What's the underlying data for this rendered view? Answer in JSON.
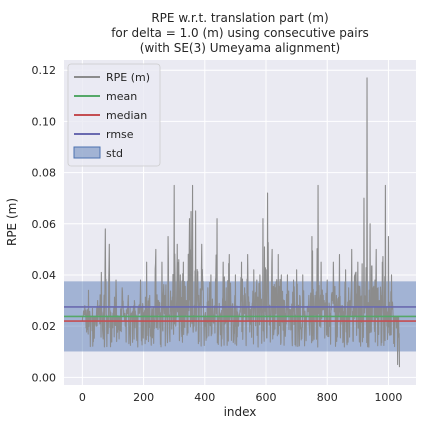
{
  "chart_data": {
    "type": "line",
    "title_lines": [
      "RPE w.r.t. translation part (m)",
      "for delta = 1.0 (m) using consecutive pairs",
      "(with SE(3) Umeyama alignment)"
    ],
    "xlabel": "index",
    "ylabel": "RPE (m)",
    "xlim": [
      -60,
      1090
    ],
    "ylim": [
      -0.003,
      0.124
    ],
    "xticks": [
      0,
      200,
      400,
      600,
      800,
      1000
    ],
    "yticks": [
      0.0,
      0.02,
      0.04,
      0.06,
      0.08,
      0.1,
      0.12
    ],
    "ytick_labels": [
      "0.00",
      "0.02",
      "0.04",
      "0.06",
      "0.08",
      "0.10",
      "0.12"
    ],
    "background": "#eaeaf2",
    "grid": true,
    "legend_position": "top-left",
    "stats": {
      "mean": 0.0238,
      "median": 0.022,
      "rmse": 0.0275,
      "std": 0.0137
    },
    "series": [
      {
        "name": "RPE (m)",
        "color": "#8c8c8c",
        "x_start": 0,
        "x_step": 1,
        "keypoints": [
          [
            0,
            0.022
          ],
          [
            8,
            0.028
          ],
          [
            15,
            0.025
          ],
          [
            20,
            0.034
          ],
          [
            26,
            0.012
          ],
          [
            35,
            0.018
          ],
          [
            42,
            0.022
          ],
          [
            50,
            0.03
          ],
          [
            55,
            0.028
          ],
          [
            62,
            0.041
          ],
          [
            68,
            0.015
          ],
          [
            75,
            0.058
          ],
          [
            80,
            0.012
          ],
          [
            88,
            0.052
          ],
          [
            95,
            0.018
          ],
          [
            100,
            0.025
          ],
          [
            110,
            0.038
          ],
          [
            120,
            0.015
          ],
          [
            130,
            0.035
          ],
          [
            140,
            0.02
          ],
          [
            150,
            0.032
          ],
          [
            160,
            0.025
          ],
          [
            170,
            0.03
          ],
          [
            180,
            0.02
          ],
          [
            190,
            0.038
          ],
          [
            200,
            0.025
          ],
          [
            210,
            0.045
          ],
          [
            220,
            0.032
          ],
          [
            230,
            0.025
          ],
          [
            240,
            0.05
          ],
          [
            250,
            0.028
          ],
          [
            260,
            0.045
          ],
          [
            270,
            0.032
          ],
          [
            280,
            0.055
          ],
          [
            290,
            0.03
          ],
          [
            300,
            0.075
          ],
          [
            305,
            0.02
          ],
          [
            310,
            0.052
          ],
          [
            320,
            0.04
          ],
          [
            330,
            0.045
          ],
          [
            340,
            0.03
          ],
          [
            350,
            0.062
          ],
          [
            360,
            0.075
          ],
          [
            365,
            0.02
          ],
          [
            370,
            0.065
          ],
          [
            380,
            0.032
          ],
          [
            390,
            0.052
          ],
          [
            400,
            0.02
          ],
          [
            410,
            0.035
          ],
          [
            420,
            0.04
          ],
          [
            430,
            0.025
          ],
          [
            440,
            0.062
          ],
          [
            450,
            0.022
          ],
          [
            460,
            0.045
          ],
          [
            470,
            0.035
          ],
          [
            480,
            0.048
          ],
          [
            490,
            0.028
          ],
          [
            500,
            0.04
          ],
          [
            510,
            0.02
          ],
          [
            520,
            0.045
          ],
          [
            530,
            0.035
          ],
          [
            540,
            0.048
          ],
          [
            550,
            0.025
          ],
          [
            560,
            0.042
          ],
          [
            570,
            0.038
          ],
          [
            580,
            0.04
          ],
          [
            590,
            0.062
          ],
          [
            600,
            0.042
          ],
          [
            605,
            0.072
          ],
          [
            610,
            0.028
          ],
          [
            620,
            0.05
          ],
          [
            630,
            0.035
          ],
          [
            640,
            0.048
          ],
          [
            650,
            0.04
          ],
          [
            660,
            0.03
          ],
          [
            670,
            0.04
          ],
          [
            680,
            0.025
          ],
          [
            690,
            0.038
          ],
          [
            700,
            0.042
          ],
          [
            710,
            0.032
          ],
          [
            720,
            0.04
          ],
          [
            730,
            0.02
          ],
          [
            740,
            0.032
          ],
          [
            750,
            0.055
          ],
          [
            760,
            0.032
          ],
          [
            770,
            0.075
          ],
          [
            775,
            0.02
          ],
          [
            780,
            0.045
          ],
          [
            790,
            0.03
          ],
          [
            800,
            0.038
          ],
          [
            810,
            0.025
          ],
          [
            820,
            0.045
          ],
          [
            830,
            0.032
          ],
          [
            840,
            0.048
          ],
          [
            850,
            0.028
          ],
          [
            860,
            0.042
          ],
          [
            870,
            0.035
          ],
          [
            880,
            0.05
          ],
          [
            890,
            0.04
          ],
          [
            900,
            0.045
          ],
          [
            910,
            0.03
          ],
          [
            920,
            0.07
          ],
          [
            925,
            0.03
          ],
          [
            930,
            0.117
          ],
          [
            935,
            0.02
          ],
          [
            940,
            0.06
          ],
          [
            950,
            0.035
          ],
          [
            960,
            0.05
          ],
          [
            970,
            0.03
          ],
          [
            980,
            0.045
          ],
          [
            990,
            0.075
          ],
          [
            995,
            0.02
          ],
          [
            1000,
            0.055
          ],
          [
            1005,
            0.025
          ],
          [
            1010,
            0.04
          ],
          [
            1020,
            0.012
          ],
          [
            1030,
            0.005
          ],
          [
            1036,
            0.004
          ]
        ]
      },
      {
        "name": "mean",
        "color": "#55a868",
        "value": 0.0238
      },
      {
        "name": "median",
        "color": "#c44e52",
        "value": 0.022
      },
      {
        "name": "rmse",
        "color": "#6a6ab0",
        "value": 0.0275
      },
      {
        "name": "std",
        "color": "#4c72b0",
        "band": [
          0.0101,
          0.0375
        ]
      }
    ]
  }
}
